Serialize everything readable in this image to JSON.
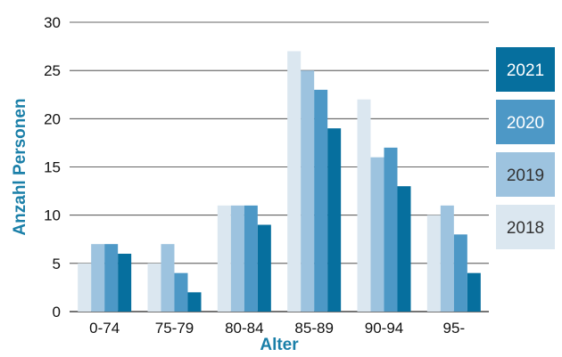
{
  "chart_data": {
    "type": "bar",
    "categories": [
      "0-74",
      "75-79",
      "80-84",
      "85-89",
      "90-94",
      "95-"
    ],
    "series": [
      {
        "name": "2018",
        "values": [
          5,
          5,
          11,
          27,
          22,
          10
        ]
      },
      {
        "name": "2019",
        "values": [
          7,
          7,
          11,
          25,
          16,
          11
        ]
      },
      {
        "name": "2020",
        "values": [
          7,
          4,
          11,
          23,
          17,
          8
        ]
      },
      {
        "name": "2021",
        "values": [
          6,
          2,
          9,
          19,
          13,
          4
        ]
      }
    ],
    "title": "",
    "xlabel": "Alter",
    "ylabel": "Anzahl Personen",
    "ylim": [
      0,
      30
    ],
    "yticks": [
      0,
      5,
      10,
      15,
      20,
      25,
      30
    ],
    "grid": true,
    "legend_position": "right",
    "legend_order": [
      "2021",
      "2020",
      "2019",
      "2018"
    ],
    "colors": {
      "2018": "#dbe7f0",
      "2019": "#9dc3df",
      "2020": "#4d98c6",
      "2021": "#066f9e"
    },
    "legend_text_colors": {
      "2018": "#333333",
      "2019": "#333333",
      "2020": "#ffffff",
      "2021": "#ffffff"
    },
    "axis_title_color": "#1a7fa8"
  }
}
